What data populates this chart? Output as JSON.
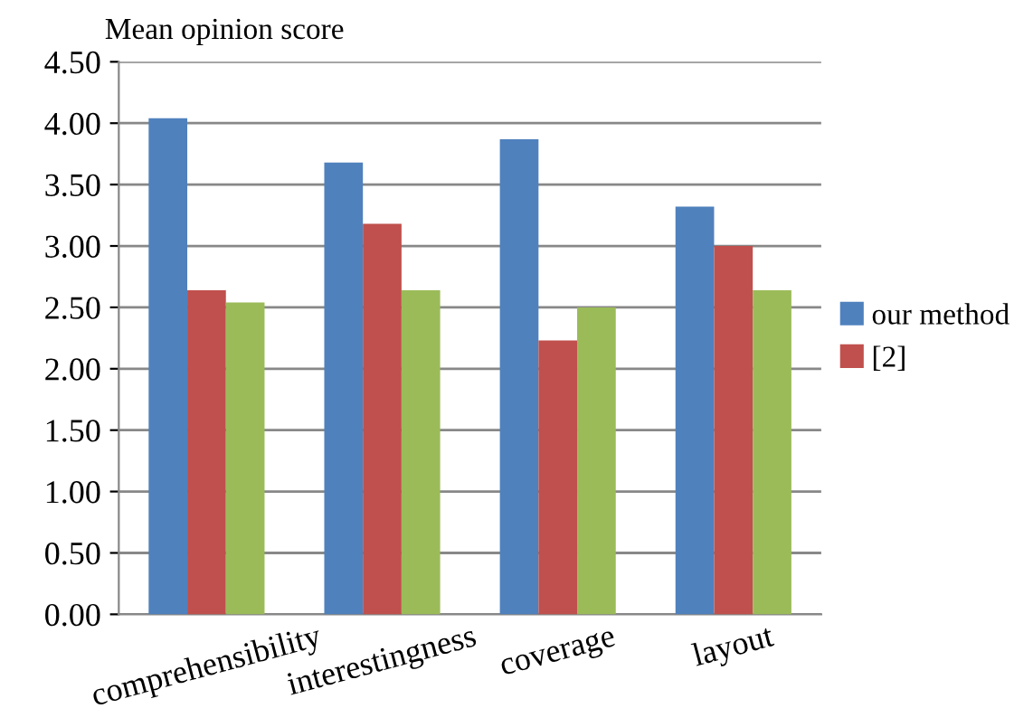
{
  "chart_data": {
    "type": "bar",
    "ylabel": "Mean opinion score",
    "categories": [
      "comprehensibility",
      "interestingness",
      "coverage",
      "layout"
    ],
    "series": [
      {
        "name": "our method",
        "color": "#4f81bd",
        "values": [
          4.04,
          3.68,
          3.87,
          3.32
        ]
      },
      {
        "name": "[2]",
        "color": "#c0504d",
        "values": [
          2.64,
          3.18,
          2.23,
          3.0
        ]
      },
      {
        "color": "#9bbb59",
        "values": [
          2.54,
          2.64,
          2.5,
          2.64
        ]
      }
    ],
    "ylim": [
      0,
      4.5
    ],
    "yticks": [
      {
        "value": 0,
        "label": "0.00"
      },
      {
        "value": 0.5,
        "label": "0.50"
      },
      {
        "value": 1,
        "label": "1.00"
      },
      {
        "value": 1.5,
        "label": "1.50"
      },
      {
        "value": 2,
        "label": "2.00"
      },
      {
        "value": 2.5,
        "label": "2.50"
      },
      {
        "value": 3,
        "label": "3.00"
      },
      {
        "value": 3.5,
        "label": "3.50"
      },
      {
        "value": 4,
        "label": "4.00"
      },
      {
        "value": 4.5,
        "label": "4.50"
      }
    ],
    "grid": "y",
    "legend": "right"
  }
}
